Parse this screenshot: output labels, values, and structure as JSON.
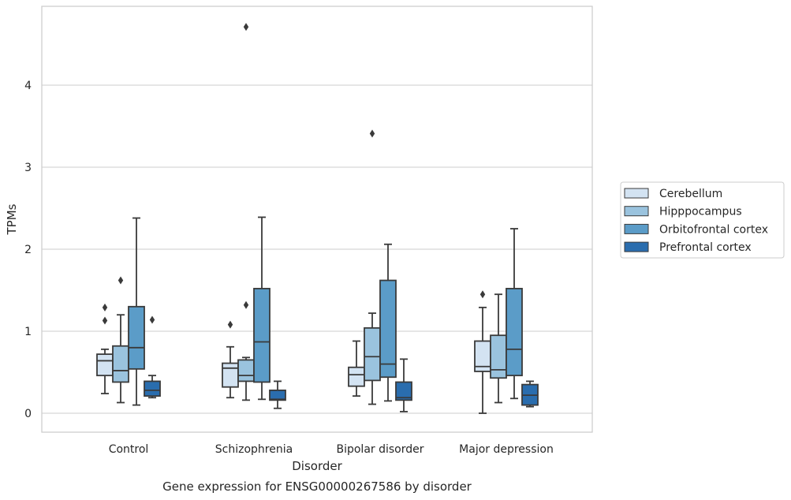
{
  "chart_data": {
    "type": "boxplot",
    "caption": "Gene expression for ENSG00000267586 by disorder",
    "xlabel": "Disorder",
    "ylabel": "TPMs",
    "ylim": [
      -0.23,
      4.95
    ],
    "yticks": [
      0,
      1,
      2,
      3,
      4
    ],
    "grid": true,
    "legend_position": "right",
    "categories": [
      "Control",
      "Schizophrenia",
      "Bipolar disorder",
      "Major depression"
    ],
    "series": [
      {
        "name": "Cerebellum",
        "color": "#d3e3f2",
        "boxes": [
          {
            "whisker_low": 0.24,
            "q1": 0.46,
            "median": 0.64,
            "q3": 0.72,
            "whisker_high": 0.78,
            "outliers": [
              1.13,
              1.29
            ]
          },
          {
            "whisker_low": 0.19,
            "q1": 0.32,
            "median": 0.55,
            "q3": 0.61,
            "whisker_high": 0.81,
            "outliers": [
              1.08
            ]
          },
          {
            "whisker_low": 0.21,
            "q1": 0.33,
            "median": 0.47,
            "q3": 0.56,
            "whisker_high": 0.88,
            "outliers": []
          },
          {
            "whisker_low": 0.0,
            "q1": 0.51,
            "median": 0.57,
            "q3": 0.88,
            "whisker_high": 1.29,
            "outliers": [
              1.45
            ]
          }
        ]
      },
      {
        "name": "Hipppocampus",
        "color": "#9ac3de",
        "boxes": [
          {
            "whisker_low": 0.13,
            "q1": 0.38,
            "median": 0.52,
            "q3": 0.82,
            "whisker_high": 1.2,
            "outliers": [
              1.62
            ]
          },
          {
            "whisker_low": 0.16,
            "q1": 0.39,
            "median": 0.46,
            "q3": 0.65,
            "whisker_high": 0.68,
            "outliers": [
              1.32,
              4.71
            ]
          },
          {
            "whisker_low": 0.11,
            "q1": 0.4,
            "median": 0.69,
            "q3": 1.04,
            "whisker_high": 1.22,
            "outliers": [
              3.41
            ]
          },
          {
            "whisker_low": 0.13,
            "q1": 0.43,
            "median": 0.53,
            "q3": 0.95,
            "whisker_high": 1.45,
            "outliers": []
          }
        ]
      },
      {
        "name": "Orbitofrontal cortex",
        "color": "#5b9cc8",
        "boxes": [
          {
            "whisker_low": 0.1,
            "q1": 0.54,
            "median": 0.8,
            "q3": 1.3,
            "whisker_high": 2.38,
            "outliers": []
          },
          {
            "whisker_low": 0.17,
            "q1": 0.38,
            "median": 0.87,
            "q3": 1.52,
            "whisker_high": 2.39,
            "outliers": []
          },
          {
            "whisker_low": 0.15,
            "q1": 0.44,
            "median": 0.6,
            "q3": 1.62,
            "whisker_high": 2.06,
            "outliers": []
          },
          {
            "whisker_low": 0.18,
            "q1": 0.46,
            "median": 0.78,
            "q3": 1.52,
            "whisker_high": 2.25,
            "outliers": []
          }
        ]
      },
      {
        "name": "Prefrontal cortex",
        "color": "#2a6dae",
        "boxes": [
          {
            "whisker_low": 0.19,
            "q1": 0.21,
            "median": 0.28,
            "q3": 0.39,
            "whisker_high": 0.46,
            "outliers": [
              1.14
            ]
          },
          {
            "whisker_low": 0.06,
            "q1": 0.16,
            "median": 0.17,
            "q3": 0.28,
            "whisker_high": 0.39,
            "outliers": []
          },
          {
            "whisker_low": 0.02,
            "q1": 0.16,
            "median": 0.19,
            "q3": 0.38,
            "whisker_high": 0.66,
            "outliers": []
          },
          {
            "whisker_low": 0.08,
            "q1": 0.1,
            "median": 0.22,
            "q3": 0.35,
            "whisker_high": 0.39,
            "outliers": []
          }
        ]
      }
    ]
  }
}
